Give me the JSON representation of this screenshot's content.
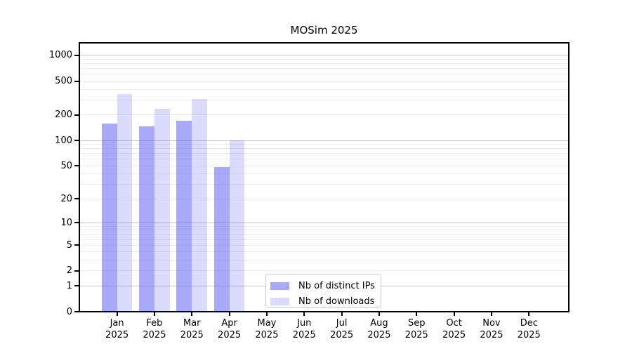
{
  "chart_data": {
    "type": "bar",
    "title": "MOSim 2025",
    "categories": [
      "Jan 2025",
      "Feb 2025",
      "Mar 2025",
      "Apr 2025",
      "May 2025",
      "Jun 2025",
      "Jul 2025",
      "Aug 2025",
      "Sep 2025",
      "Oct 2025",
      "Nov 2025",
      "Dec 2025"
    ],
    "series": [
      {
        "name": "Nb of distinct IPs",
        "color": "rgba(90,90,245,0.52)",
        "values": [
          160,
          148,
          171,
          48,
          0,
          0,
          0,
          0,
          0,
          0,
          0,
          0
        ]
      },
      {
        "name": "Nb of downloads",
        "color": "rgba(90,90,245,0.22)",
        "values": [
          350,
          237,
          310,
          100,
          0,
          0,
          0,
          0,
          0,
          0,
          0,
          0
        ]
      }
    ],
    "xlabel": "",
    "ylabel": "",
    "y_axis": {
      "scale": "log10(value+1)",
      "ticks": [
        0,
        1,
        2,
        5,
        10,
        20,
        50,
        100,
        200,
        500,
        1000
      ],
      "major_gridlines": [
        1,
        10,
        100,
        1000
      ],
      "minor_gridlines": [
        2,
        3,
        4,
        5,
        6,
        7,
        8,
        9,
        20,
        30,
        40,
        50,
        60,
        70,
        80,
        90,
        200,
        300,
        400,
        500,
        600,
        700,
        800,
        900
      ],
      "ylim": [
        0,
        1400
      ]
    },
    "grid": true,
    "legend_position": "bottom-center"
  },
  "colors": {
    "bar_distinct_ips": "rgba(90,90,245,0.52)",
    "bar_downloads": "rgba(90,90,245,0.22)",
    "grid_major": "#c2c2c2",
    "grid_minor": "#ececec",
    "spine": "#000000",
    "legend_border": "#c8c8c8",
    "text": "#000000"
  }
}
